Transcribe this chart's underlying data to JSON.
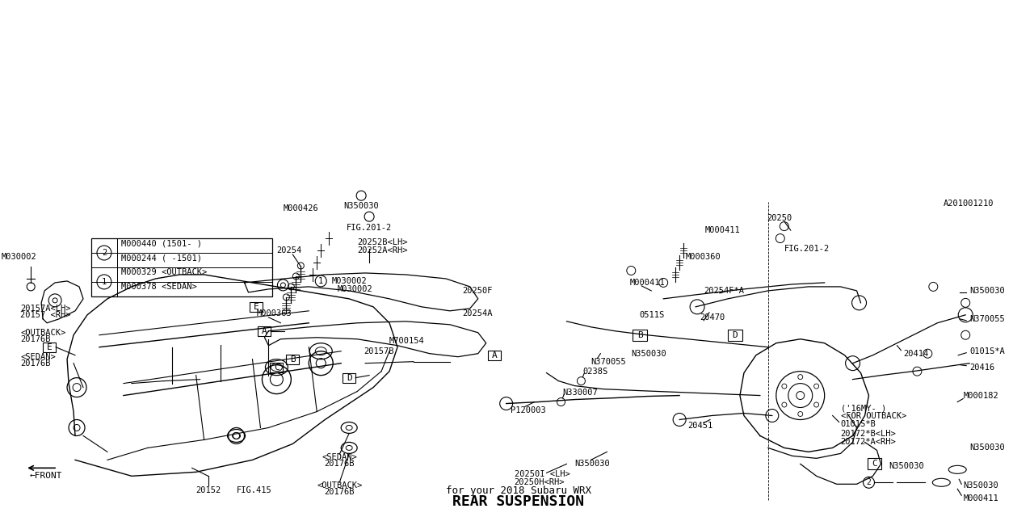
{
  "title": "REAR SUSPENSION",
  "subtitle": "for your 2018 Subaru WRX",
  "bg_color": "#ffffff",
  "line_color": "#000000",
  "font_family": "monospace",
  "diagram_id": "A201001210",
  "labels": {
    "front_arrow": "←FRONT",
    "fig415": "FIG.415",
    "20152": "20152",
    "20176B_outback_top": "20176B\n<OUTBACK>",
    "20176B_sedan_top": "20176B\n<SEDAN>",
    "20176B_sedan_left": "20176B\n<SEDAN>",
    "20176B_outback_left": "20176B\n<OUTBACK>",
    "20157_rh": "20157 <RH>",
    "20157A_lh": "20157A<LH>",
    "20157B": "20157B",
    "M700154": "M700154",
    "M000363": "M000363",
    "20254A": "20254A",
    "20250F": "20250F",
    "20254": "20254",
    "20252A_rh": "20252A<RH>",
    "20252B_lh": "20252B<LH>",
    "M030002_left": "M030002",
    "M030002_center": "M030002",
    "M000426": "M000426",
    "FIG201_2_center": "FIG.201-2",
    "N350030_center": "N350030",
    "P120003": "P120003",
    "N330007": "N330007",
    "0238S": "0238S",
    "N370055_left": "N370055",
    "N350030_mid": "N350030",
    "0511S": "0511S",
    "20451": "20451",
    "20414": "20414",
    "0101SA": "0101S*A",
    "20416": "20416",
    "20470": "20470",
    "N370055_right": "N370055",
    "20254FA": "20254F*A",
    "M000411_right": "M000411",
    "N350030_right": "N350030",
    "M000360": "M000360",
    "FIG201_2_right": "FIG.201-2",
    "M000411_top": "M000411",
    "N350030_top": "N350030",
    "N350030_c": "N350030",
    "N350030_c2": "N350030",
    "20250H_rh": "20250H<RH>",
    "20250I_lh": "20250I <LH>",
    "20172A_rh": "20172*A<RH>",
    "20172B_lh": "20172*B<LH>",
    "0101SB": "0101S*B",
    "for_outback": "<FOR OUTBACK>",
    "16my": "('16MY- )",
    "M000182": "M000182",
    "20250": "20250",
    "M000411_bot": "M000411",
    "A_box1": "A",
    "A_box2": "A",
    "B_box1": "B",
    "B_box2": "B",
    "C_box": "C",
    "D_box1": "D",
    "D_box2": "D",
    "E_box1": "E",
    "E_box2": "E",
    "legend_1_sedan": "M000378 <SEDAN>",
    "legend_1_outback": "M000329 <OUTBACK>",
    "legend_2_1501": "M000244 ( -1501)",
    "legend_2_1501p": "M000440 (1501- )"
  }
}
